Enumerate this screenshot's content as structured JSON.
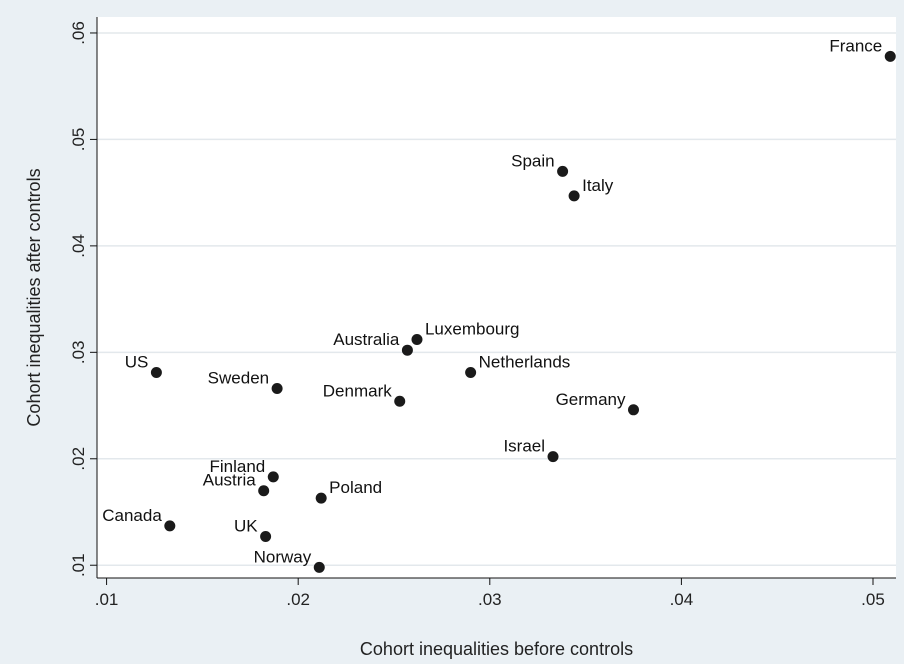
{
  "chart_data": {
    "type": "scatter",
    "title": "",
    "xlabel": "Cohort inequalities before controls",
    "ylabel": "Cohort inequalities after controls",
    "xlim": [
      0.0095,
      0.0512
    ],
    "ylim": [
      0.0088,
      0.0615
    ],
    "xticks": [
      0.01,
      0.02,
      0.03,
      0.04,
      0.05
    ],
    "xtick_labels": [
      ".01",
      ".02",
      ".03",
      ".04",
      ".05"
    ],
    "yticks": [
      0.01,
      0.02,
      0.03,
      0.04,
      0.05,
      0.06
    ],
    "ytick_labels": [
      ".01",
      ".02",
      ".03",
      ".04",
      ".05",
      ".06"
    ],
    "grid": "horizontal",
    "marker_color": "#1a1a1a",
    "grid_color": "#e3e8ec",
    "background_color": "#eaf0f4",
    "plot_background_color": "#ffffff",
    "points": [
      {
        "label": "France",
        "x": 0.0509,
        "y": 0.0578,
        "label_pos": "left"
      },
      {
        "label": "Spain",
        "x": 0.0338,
        "y": 0.047,
        "label_pos": "left"
      },
      {
        "label": "Italy",
        "x": 0.0344,
        "y": 0.0447,
        "label_pos": "right"
      },
      {
        "label": "Luxembourg",
        "x": 0.0262,
        "y": 0.0312,
        "label_pos": "right"
      },
      {
        "label": "Australia",
        "x": 0.0257,
        "y": 0.0302,
        "label_pos": "left"
      },
      {
        "label": "Netherlands",
        "x": 0.029,
        "y": 0.0281,
        "label_pos": "right"
      },
      {
        "label": "US",
        "x": 0.0126,
        "y": 0.0281,
        "label_pos": "left"
      },
      {
        "label": "Sweden",
        "x": 0.0189,
        "y": 0.0266,
        "label_pos": "left"
      },
      {
        "label": "Denmark",
        "x": 0.0253,
        "y": 0.0254,
        "label_pos": "left"
      },
      {
        "label": "Germany",
        "x": 0.0375,
        "y": 0.0246,
        "label_pos": "left"
      },
      {
        "label": "Israel",
        "x": 0.0333,
        "y": 0.0202,
        "label_pos": "left"
      },
      {
        "label": "Finland",
        "x": 0.0187,
        "y": 0.0183,
        "label_pos": "left"
      },
      {
        "label": "Austria",
        "x": 0.0182,
        "y": 0.017,
        "label_pos": "left"
      },
      {
        "label": "Poland",
        "x": 0.0212,
        "y": 0.0163,
        "label_pos": "right"
      },
      {
        "label": "Canada",
        "x": 0.0133,
        "y": 0.0137,
        "label_pos": "left"
      },
      {
        "label": "UK",
        "x": 0.0183,
        "y": 0.0127,
        "label_pos": "left"
      },
      {
        "label": "Norway",
        "x": 0.0211,
        "y": 0.0098,
        "label_pos": "left"
      }
    ]
  }
}
